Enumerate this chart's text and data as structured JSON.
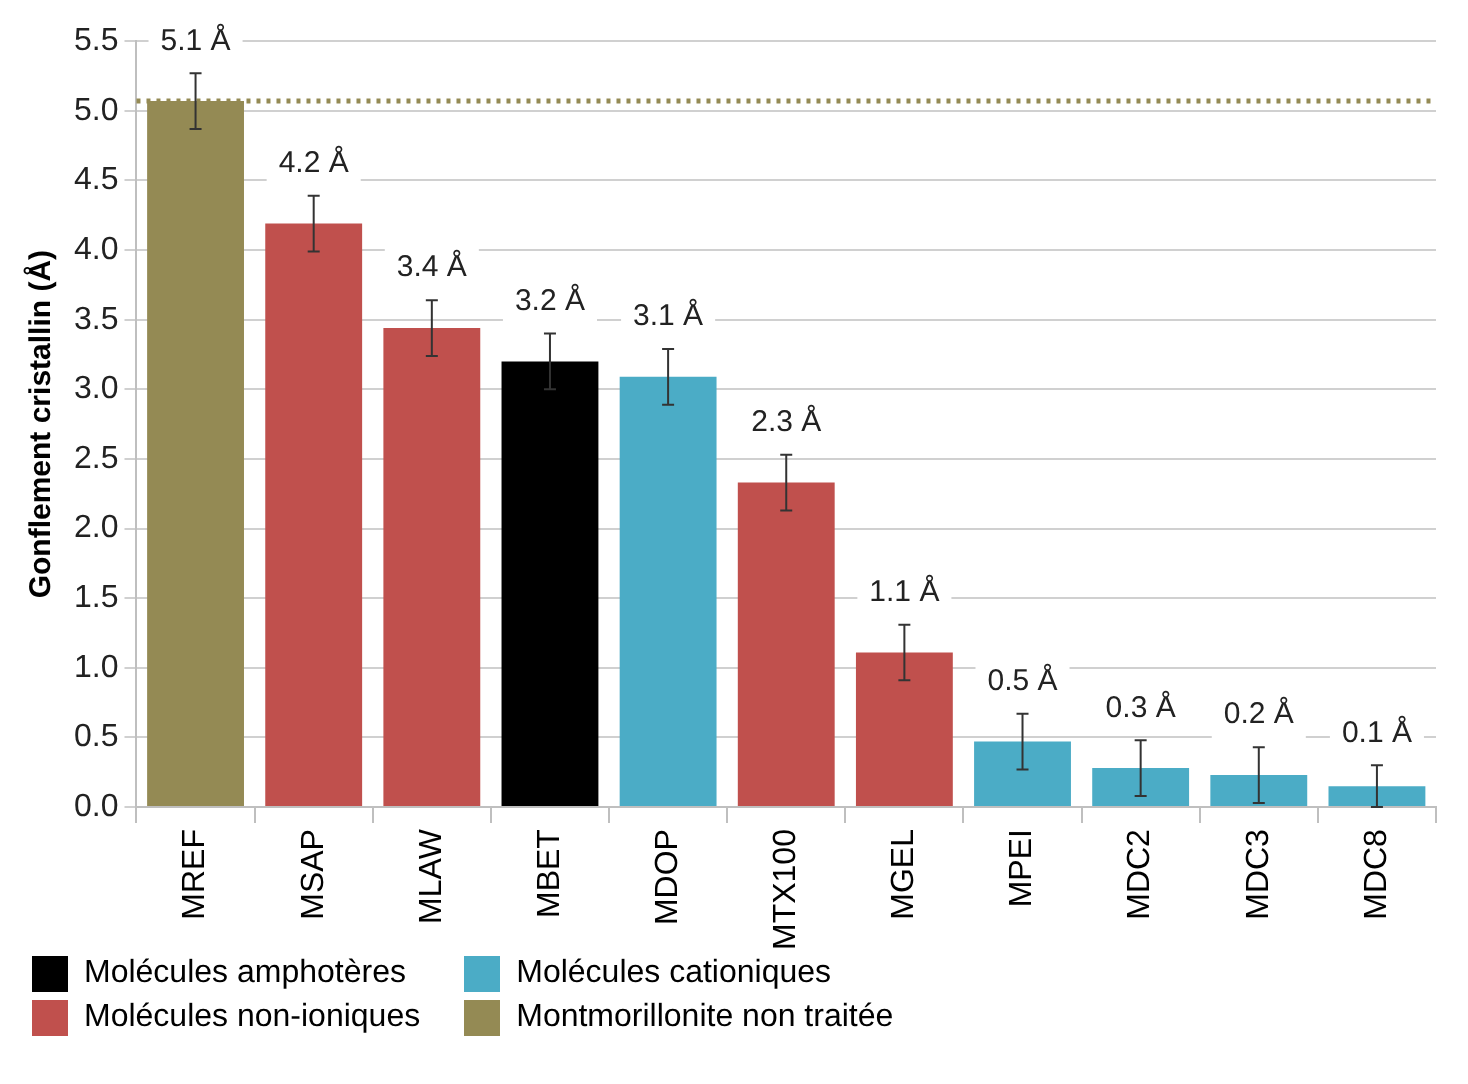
{
  "chart_data": {
    "type": "bar",
    "ylabel": "Gonflement cristallin (Å)",
    "categories": [
      "MREF",
      "MSAP",
      "MLAW",
      "MBET",
      "MDOP",
      "MTX100",
      "MGEL",
      "MPEI",
      "MDC2",
      "MDC3",
      "MDC8"
    ],
    "series": [
      {
        "name": "Molécules amphotères",
        "color": "#000000",
        "values": [
          null,
          null,
          null,
          3.2,
          null,
          null,
          null,
          null,
          null,
          null,
          null
        ],
        "errors": [
          null,
          null,
          null,
          0.2,
          null,
          null,
          null,
          null,
          null,
          null,
          null
        ],
        "value_labels": [
          null,
          null,
          null,
          "3.2 Å",
          null,
          null,
          null,
          null,
          null,
          null,
          null
        ]
      },
      {
        "name": "Molécules cationiques",
        "color": "#4bacc6",
        "values": [
          null,
          null,
          null,
          null,
          3.09,
          null,
          null,
          0.47,
          0.28,
          0.23,
          0.15
        ],
        "errors": [
          null,
          null,
          null,
          null,
          0.2,
          null,
          null,
          0.2,
          0.2,
          0.2,
          0.15
        ],
        "value_labels": [
          null,
          null,
          null,
          null,
          "3.1 Å",
          null,
          null,
          "0.5 Å",
          "0.3 Å",
          "0.2 Å",
          "0.1 Å"
        ]
      },
      {
        "name": "Molécules non-ioniques",
        "color": "#c0504d",
        "values": [
          null,
          4.19,
          3.44,
          null,
          null,
          2.33,
          1.11,
          null,
          null,
          null,
          null
        ],
        "errors": [
          null,
          0.2,
          0.2,
          null,
          null,
          0.2,
          0.2,
          null,
          null,
          null,
          null
        ],
        "value_labels": [
          null,
          "4.2 Å",
          "3.4 Å",
          null,
          null,
          "2.3 Å",
          "1.1 Å",
          null,
          null,
          null,
          null
        ]
      },
      {
        "name": "Montmorillonite non traitée",
        "color": "#948a54",
        "values": [
          5.07,
          null,
          null,
          null,
          null,
          null,
          null,
          null,
          null,
          null,
          null
        ],
        "errors": [
          0.2,
          null,
          null,
          null,
          null,
          null,
          null,
          null,
          null,
          null,
          null
        ],
        "value_labels": [
          "5.1 Å",
          null,
          null,
          null,
          null,
          null,
          null,
          null,
          null,
          null,
          null
        ]
      }
    ],
    "ylim": [
      0,
      5.5
    ],
    "yticks": [
      {
        "value": 0,
        "label": "0.0"
      },
      {
        "value": 0.5,
        "label": "0.5"
      },
      {
        "value": 1,
        "label": "1.0"
      },
      {
        "value": 1.5,
        "label": "1.5"
      },
      {
        "value": 2,
        "label": "2.0"
      },
      {
        "value": 2.5,
        "label": "2.5"
      },
      {
        "value": 3,
        "label": "3.0"
      },
      {
        "value": 3.5,
        "label": "3.5"
      },
      {
        "value": 4,
        "label": "4.0"
      },
      {
        "value": 4.5,
        "label": "4.5"
      },
      {
        "value": 5,
        "label": "5.0"
      },
      {
        "value": 5.5,
        "label": "5.5"
      }
    ],
    "ref_lines": [
      {
        "axis": "y",
        "value": 5.07,
        "color": "#948a54",
        "line_style": "dotted"
      }
    ],
    "grid": "y",
    "legend": "bottom"
  }
}
